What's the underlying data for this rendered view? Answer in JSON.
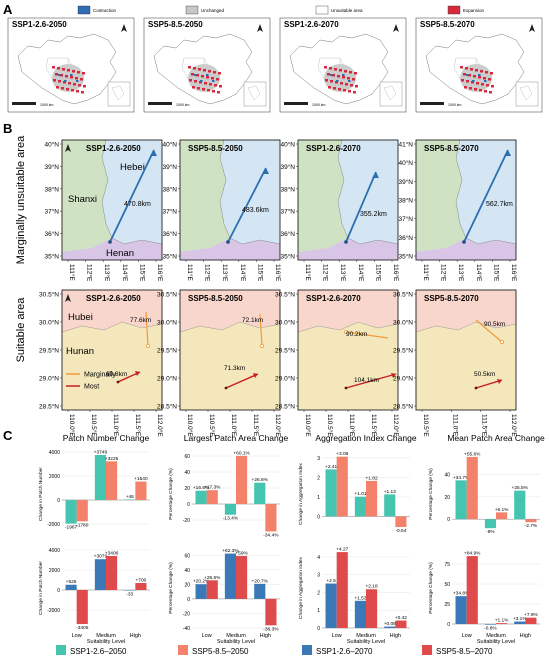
{
  "colors": {
    "ssp126_2050": "#45c4b0",
    "ssp585_2050": "#f4826b",
    "ssp126_2070": "#3a78b8",
    "ssp585_2070": "#df4b4b",
    "contraction": "#2f6cb3",
    "unchanged": "#c7c7c7",
    "unsuitable": "#ffffff",
    "expansion": "#d8283c",
    "hebei": "#d4e6f4",
    "shanxi": "#cfe2c3",
    "henan": "#d9c6e6",
    "hubei": "#f8d6cc",
    "hunan": "#f3e7bb",
    "marginal_arrow": "#f29a3a",
    "most_arrow": "#c81e1e",
    "centroid_arrow": "#2b6fb0"
  },
  "panel_a": {
    "label": "A",
    "legend": [
      "Contraction",
      "Unchanged",
      "Unsuitable area",
      "Expansion"
    ],
    "maps": [
      "SSP1-2.6-2050",
      "SSP5-8.5-2050",
      "SSP1-2.6-2070",
      "SSP5-8.5-2070"
    ],
    "scale_label": "1000 km"
  },
  "panel_b": {
    "label": "B",
    "row1_title": "Marginally unsuitable area",
    "row2_title": "Suitable area",
    "row1": [
      {
        "title": "SSP1-2.6-2050",
        "distance": "470.8km",
        "ylabels": [
          "40°N",
          "39°N",
          "38°N",
          "37°N",
          "36°N",
          "35°N"
        ],
        "xlabels": [
          "111°E",
          "112°E",
          "113°E",
          "114°E",
          "115°E",
          "116°E"
        ]
      },
      {
        "title": "SSP5-8.5-2050",
        "distance": "483.6km",
        "ylabels": [
          "40°N",
          "39°N",
          "38°N",
          "37°N",
          "36°N",
          "35°N"
        ],
        "xlabels": [
          "111°E",
          "112°E",
          "113°E",
          "114°E",
          "115°E",
          "116°E"
        ]
      },
      {
        "title": "SSP1-2.6-2070",
        "distance": "355.2km",
        "ylabels": [
          "40°N",
          "39°N",
          "38°N",
          "37°N",
          "36°N",
          "35°N"
        ],
        "xlabels": [
          "111°E",
          "112°E",
          "113°E",
          "114°E",
          "115°E",
          "116°E"
        ]
      },
      {
        "title": "SSP5-8.5-2070",
        "distance": "562.7km",
        "ylabels": [
          "41°N",
          "40°N",
          "39°N",
          "38°N",
          "37°N",
          "36°N",
          "35°N"
        ],
        "xlabels": [
          "111°E",
          "112°E",
          "113°E",
          "114°E",
          "115°E",
          "116°E"
        ]
      }
    ],
    "row1_provinces": [
      "Hebei",
      "Shanxi",
      "Henan"
    ],
    "row2": [
      {
        "title": "SSP1-2.6-2050",
        "marg": "77.6km",
        "most": "60.8km",
        "ylabels": [
          "30.5°N",
          "30.0°N",
          "29.5°N",
          "29.0°N",
          "28.5°N"
        ],
        "xlabels": [
          "110.0°E",
          "110.5°E",
          "111.0°E",
          "111.5°E",
          "112.0°E"
        ]
      },
      {
        "title": "SSP5-8.5-2050",
        "marg": "72.1km",
        "most": "71.3km",
        "ylabels": [
          "30.5°N",
          "30.0°N",
          "29.5°N",
          "29.0°N",
          "28.5°N"
        ],
        "xlabels": [
          "110.0°E",
          "110.5°E",
          "111.0°E",
          "111.5°E",
          "112.0°E"
        ]
      },
      {
        "title": "SSP1-2.6-2070",
        "marg": "90.2km",
        "most": "104.1km",
        "ylabels": [
          "30.5°N",
          "30.0°N",
          "29.5°N",
          "29.0°N",
          "28.5°N"
        ],
        "xlabels": [
          "110.0°E",
          "110.5°E",
          "111.0°E",
          "111.5°E",
          "112.0°E"
        ]
      },
      {
        "title": "SSP5-8.5-2070",
        "marg": "90.5km",
        "most": "50.5km",
        "ylabels": [
          "30.5°N",
          "30.0°N",
          "29.5°N",
          "29.0°N",
          "28.5°N"
        ],
        "xlabels": [
          "110.5°E",
          "111.0°E",
          "111.5°E",
          "112.0°E"
        ]
      }
    ],
    "row2_provinces": [
      "Hubei",
      "Hunan"
    ],
    "legend": [
      "Marginally",
      "Most"
    ]
  },
  "panel_c": {
    "label": "C",
    "xaxis_title": "Suitability Level",
    "legend": [
      "SSP1-2.6–2050",
      "SSP5-8.5–2050",
      "SSP1-2.6–2070",
      "SSP5-8.5–2070"
    ]
  },
  "chart_data": [
    {
      "type": "bar",
      "title": "Patch Number Change",
      "ylabel": "Change in Patch Number",
      "categories": [
        "Low",
        "Medium",
        "High"
      ],
      "ylim": [
        -3000,
        4000
      ],
      "yticks": [
        -2000,
        0,
        2000,
        4000
      ],
      "series": [
        {
          "name": "SSP1-2.6–2050",
          "values": [
            -1967,
            3749,
            46
          ],
          "labels": [
            "-1967",
            "+3749",
            "+46"
          ]
        },
        {
          "name": "SSP5-8.5–2050",
          "values": [
            -1780,
            3225,
            1540
          ],
          "labels": [
            "-1780",
            "+3225",
            "+1540"
          ]
        }
      ]
    },
    {
      "type": "bar",
      "title": "Largest Patch Area Change",
      "ylabel": "Percentage Change (%)",
      "categories": [
        "Low",
        "Medium",
        "High"
      ],
      "ylim": [
        -40,
        65
      ],
      "yticks": [
        -20,
        0,
        20,
        40,
        60
      ],
      "series": [
        {
          "name": "SSP1-2.6–2050",
          "values": [
            16.6,
            -13.4,
            26.6
          ],
          "labels": [
            "+16.6%",
            "-13.4%",
            "+26.6%"
          ]
        },
        {
          "name": "SSP5-8.5–2050",
          "values": [
            17.3,
            60.1,
            -34.4
          ],
          "labels": [
            "+17.3%",
            "+60.1%",
            "-34.4%"
          ]
        }
      ]
    },
    {
      "type": "bar",
      "title": "Aggregation Index Change",
      "ylabel": "Change in Aggregation Index",
      "categories": [
        "Low",
        "Medium",
        "High"
      ],
      "ylim": [
        -1,
        3.3
      ],
      "yticks": [
        0,
        1,
        2,
        3
      ],
      "series": [
        {
          "name": "SSP1-2.6–2050",
          "values": [
            2.41,
            1.01,
            1.13
          ],
          "labels": [
            "+2.41",
            "+1.01",
            "+1.13"
          ]
        },
        {
          "name": "SSP5-8.5–2050",
          "values": [
            3.06,
            1.82,
            -0.54
          ],
          "labels": [
            "+3.06",
            "+1.82",
            "-0.54"
          ]
        }
      ]
    },
    {
      "type": "bar",
      "title": "Mean Patch Area Change",
      "ylabel": "Percentage Change (%)",
      "categories": [
        "Low",
        "Medium",
        "High"
      ],
      "ylim": [
        -15,
        60
      ],
      "yticks": [
        0,
        20,
        40
      ],
      "series": [
        {
          "name": "SSP1-2.6–2050",
          "values": [
            34.7,
            -8,
            25.5
          ],
          "labels": [
            "+34.7%",
            "-8%",
            "+25.5%"
          ]
        },
        {
          "name": "SSP5-8.5–2050",
          "values": [
            55.6,
            6.1,
            -2.7
          ],
          "labels": [
            "+55.6%",
            "+6.1%",
            "-2.7%"
          ]
        }
      ]
    },
    {
      "type": "bar",
      "title": "",
      "ylabel": "Change in Patch Number",
      "categories": [
        "Low",
        "Medium",
        "High"
      ],
      "ylim": [
        -3800,
        4200
      ],
      "yticks": [
        -2000,
        0,
        2000,
        4000
      ],
      "series": [
        {
          "name": "SSP1-2.6–2070",
          "values": [
            526,
            3079,
            -33
          ],
          "labels": [
            "+526",
            "+3079",
            "-33"
          ]
        },
        {
          "name": "SSP5-8.5–2070",
          "values": [
            -3405,
            3406,
            700
          ],
          "labels": [
            "-3405",
            "+3406",
            "+700"
          ]
        }
      ]
    },
    {
      "type": "bar",
      "title": "",
      "ylabel": "Percentage Change (%)",
      "categories": [
        "Low",
        "Medium",
        "High"
      ],
      "ylim": [
        -40,
        70
      ],
      "yticks": [
        -40,
        -20,
        0,
        20,
        40,
        60
      ],
      "series": [
        {
          "name": "SSP1-2.6–2070",
          "values": [
            20.2,
            62.3,
            20.7
          ],
          "labels": [
            "+20.2%",
            "+62.3%",
            "+20.7%"
          ]
        },
        {
          "name": "SSP5-8.5–2070",
          "values": [
            25.6,
            59,
            -36.3
          ],
          "labels": [
            "+25.6%",
            "+59%",
            "-36.3%"
          ]
        }
      ]
    },
    {
      "type": "bar",
      "title": "",
      "ylabel": "Change in Aggregation Index",
      "categories": [
        "Low",
        "Medium",
        "High"
      ],
      "ylim": [
        0,
        4.5
      ],
      "yticks": [
        0,
        1,
        2,
        3,
        4
      ],
      "series": [
        {
          "name": "SSP1-2.6–2070",
          "values": [
            2.5,
            1.53,
            0.08
          ],
          "labels": [
            "+2.5",
            "+1.53",
            "+0.08"
          ]
        },
        {
          "name": "SSP5-8.5–2070",
          "values": [
            4.27,
            2.18,
            0.42
          ],
          "labels": [
            "+4.27",
            "+2.18",
            "+0.42"
          ]
        }
      ]
    },
    {
      "type": "bar",
      "title": "",
      "ylabel": "Percentage Change (%)",
      "categories": [
        "Low",
        "Medium",
        "High"
      ],
      "ylim": [
        -5,
        95
      ],
      "yticks": [
        0,
        25,
        50,
        75
      ],
      "series": [
        {
          "name": "SSP1-2.6–2070",
          "values": [
            34.8,
            -0.8,
            3.1
          ],
          "labels": [
            "+34.8%",
            "-0.8%",
            "+3.1%"
          ]
        },
        {
          "name": "SSP5-8.5–2070",
          "values": [
            84.9,
            1.1,
            7.9
          ],
          "labels": [
            "+84.9%",
            "+1.1%",
            "+7.9%"
          ]
        }
      ]
    }
  ]
}
